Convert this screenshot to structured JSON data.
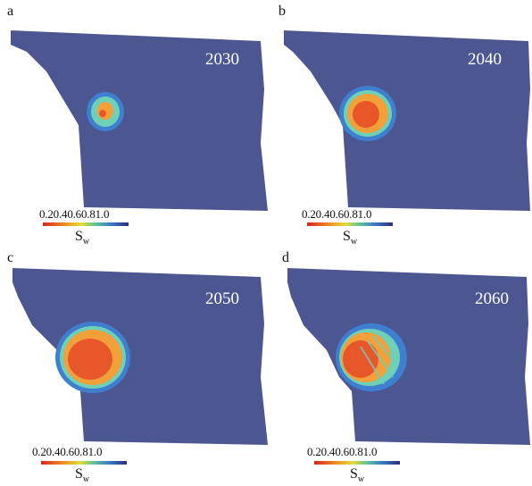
{
  "panels": [
    {
      "letter": "a",
      "year": "2030",
      "plume": 0.0
    },
    {
      "letter": "b",
      "year": "2040",
      "plume": 0.33
    },
    {
      "letter": "c",
      "year": "2050",
      "plume": 0.66
    },
    {
      "letter": "d",
      "year": "2060",
      "plume": 1.0
    }
  ],
  "colorbar": {
    "ticks": [
      "0.2",
      "0.4",
      "0.6",
      "0.8",
      "1.0"
    ],
    "label_main": "S",
    "label_sub": "w"
  },
  "colors": {
    "domain": "#4c5792",
    "plume_edge": "#3f7fd0",
    "plume_ring": "#6fd0b8",
    "plume_core": "#e8572a",
    "plume_hot": "#f2a03a"
  }
}
